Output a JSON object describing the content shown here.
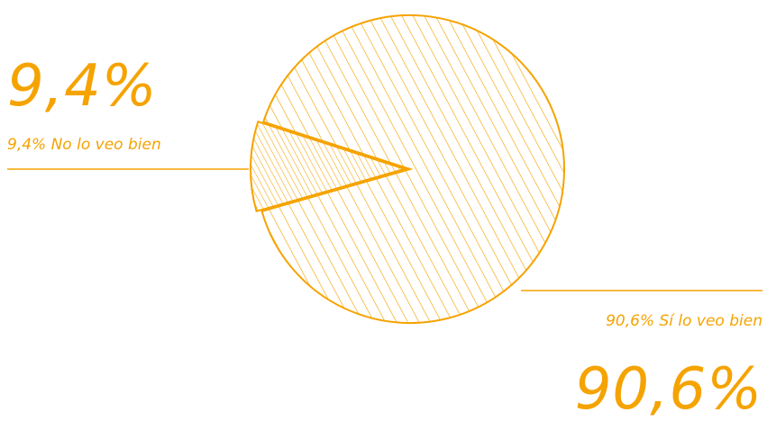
{
  "chart_data": {
    "type": "pie",
    "slices": [
      {
        "label": "Sí lo veo bien",
        "value": 90.6,
        "percent_text": "90,6%",
        "legend_text": "90,6% Sí lo veo bien"
      },
      {
        "label": "No lo veo bien",
        "value": 9.4,
        "percent_text": "9,4%",
        "legend_text": "9,4% No lo veo bien"
      }
    ],
    "colors": {
      "accent": "#F5A300",
      "background": "#FFFFFF"
    },
    "hatching": "diagonal lines",
    "legend": "callouts: small slice top-left, large slice bottom-right"
  }
}
